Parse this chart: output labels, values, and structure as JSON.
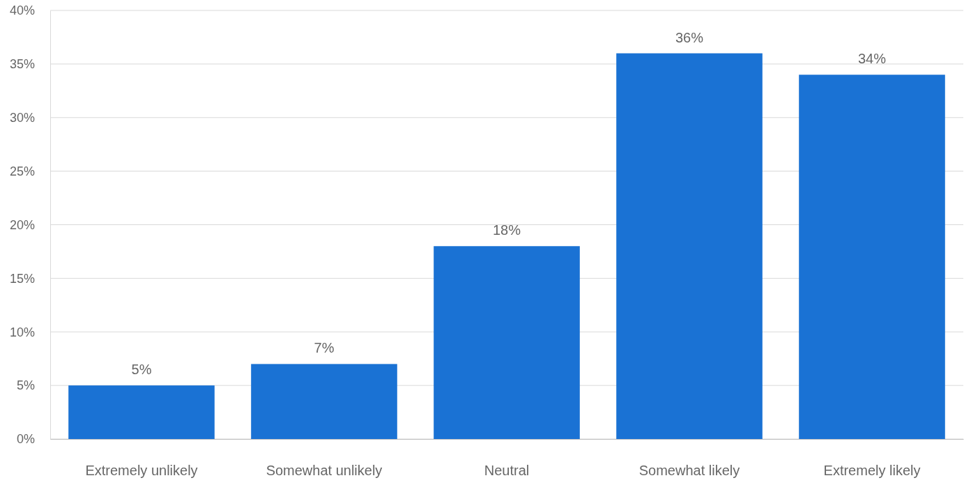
{
  "chart_data": {
    "type": "bar",
    "categories": [
      "Extremely unlikely",
      "Somewhat unlikely",
      "Neutral",
      "Somewhat likely",
      "Extremely likely"
    ],
    "values": [
      5,
      7,
      18,
      36,
      34
    ],
    "value_labels": [
      "5%",
      "7%",
      "18%",
      "36%",
      "34%"
    ],
    "color": "#1a72d4",
    "ylim": [
      0,
      40
    ],
    "yticks": [
      {
        "value": 0,
        "label": "0%"
      },
      {
        "value": 5,
        "label": "5%"
      },
      {
        "value": 10,
        "label": "10%"
      },
      {
        "value": 15,
        "label": "15%"
      },
      {
        "value": 20,
        "label": "20%"
      },
      {
        "value": 25,
        "label": "25%"
      },
      {
        "value": 30,
        "label": "30%"
      },
      {
        "value": 35,
        "label": "35%"
      },
      {
        "value": 40,
        "label": "40%"
      }
    ],
    "grid": "y"
  }
}
